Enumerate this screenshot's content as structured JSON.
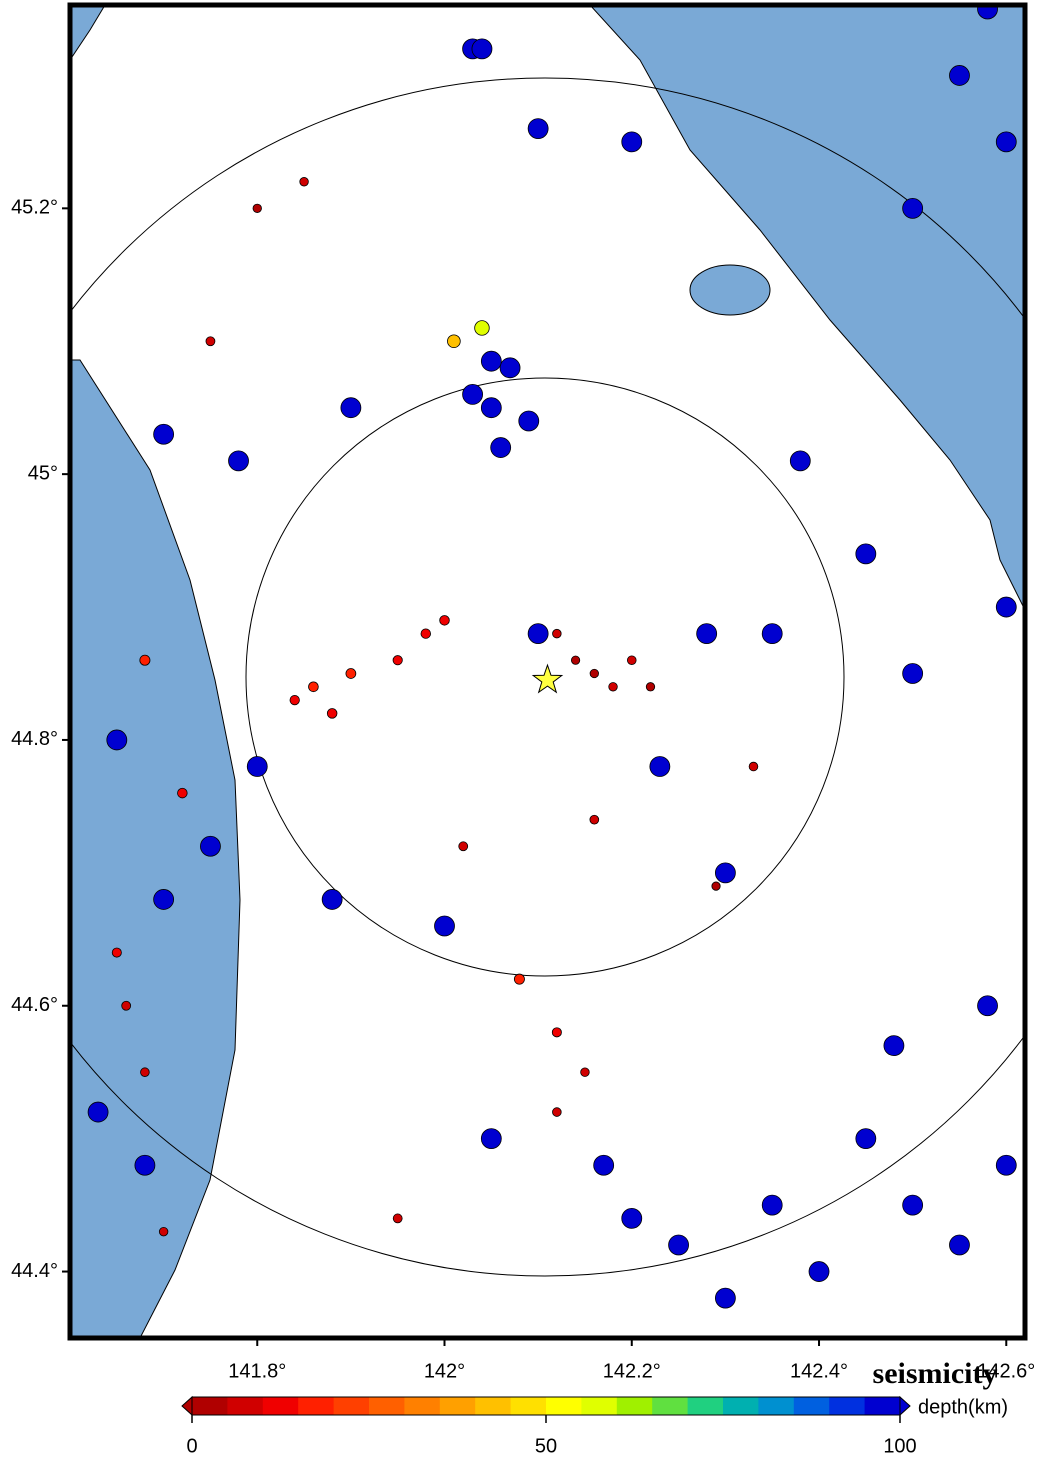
{
  "chart_data": {
    "type": "scatter",
    "title": "seismicity",
    "xlim": [
      141.6,
      142.62
    ],
    "ylim": [
      44.35,
      45.353
    ],
    "xticks": [
      {
        "value": 141.8,
        "label": "141.8°"
      },
      {
        "value": 142,
        "label": "142°"
      },
      {
        "value": 142.2,
        "label": "142.2°"
      },
      {
        "value": 142.4,
        "label": "142.4°"
      },
      {
        "value": 142.6,
        "label": "142.6°"
      }
    ],
    "yticks": [
      {
        "value": 44.4,
        "label": "44.4°"
      },
      {
        "value": 44.6,
        "label": "44.6°"
      },
      {
        "value": 44.8,
        "label": "44.8°"
      },
      {
        "value": 45,
        "label": "45°"
      },
      {
        "value": 45.2,
        "label": "45.2°"
      }
    ],
    "x": [
      141.86,
      141.88,
      141.9,
      141.84,
      141.98,
      142.0,
      141.95,
      142.14,
      142.16,
      142.18,
      142.2,
      142.12,
      142.22,
      142.05,
      142.07,
      142.09,
      142.03,
      142.06,
      142.05,
      142.04,
      142.01,
      142.38,
      142.45,
      142.5,
      142.35,
      142.28,
      142.45,
      142.5,
      142.55,
      142.4,
      142.35,
      142.3,
      142.6,
      142.25,
      142.58,
      142.48,
      141.66,
      141.68,
      141.7,
      141.65,
      141.72,
      141.68,
      141.65,
      141.7,
      141.63,
      141.68,
      141.75,
      141.8,
      141.88,
      142.0,
      142.1,
      142.23,
      142.3,
      141.85,
      141.8,
      141.75,
      141.9,
      141.78,
      141.7,
      142.55,
      142.6,
      142.5,
      142.2,
      142.1,
      142.03,
      142.04,
      142.12,
      142.12,
      142.15,
      142.17,
      142.2,
      142.05,
      141.95,
      142.08,
      142.29,
      142.33,
      142.02,
      142.16,
      142.6,
      142.58
    ],
    "y": [
      44.84,
      44.82,
      44.85,
      44.83,
      44.88,
      44.89,
      44.86,
      44.86,
      44.85,
      44.84,
      44.86,
      44.88,
      44.84,
      45.05,
      45.08,
      45.04,
      45.06,
      45.02,
      45.085,
      45.11,
      45.1,
      45.01,
      44.94,
      44.85,
      44.88,
      44.88,
      44.5,
      44.45,
      44.42,
      44.4,
      44.45,
      44.38,
      44.48,
      44.42,
      44.6,
      44.57,
      44.6,
      44.55,
      44.43,
      44.64,
      44.76,
      44.86,
      44.8,
      44.68,
      44.52,
      44.48,
      44.72,
      44.78,
      44.68,
      44.66,
      44.88,
      44.78,
      44.7,
      45.22,
      45.2,
      45.1,
      45.05,
      45.01,
      45.03,
      45.3,
      45.25,
      45.2,
      45.25,
      45.26,
      45.32,
      45.32,
      44.58,
      44.52,
      44.55,
      44.48,
      44.44,
      44.5,
      44.44,
      44.62,
      44.69,
      44.78,
      44.72,
      44.74,
      44.9,
      45.35
    ],
    "depth": [
      15,
      14,
      16,
      12,
      13,
      14,
      11,
      3,
      4,
      5,
      6,
      5,
      4,
      100,
      100,
      100,
      100,
      100,
      100,
      55,
      40,
      100,
      100,
      100,
      100,
      100,
      100,
      100,
      100,
      100,
      100,
      100,
      100,
      100,
      100,
      100,
      8,
      6,
      5,
      10,
      14,
      18,
      100,
      100,
      100,
      100,
      100,
      100,
      100,
      100,
      100,
      100,
      100,
      5,
      4,
      8,
      100,
      100,
      100,
      100,
      100,
      100,
      100,
      100,
      100,
      100,
      10,
      6,
      5,
      100,
      100,
      100,
      8,
      18,
      3,
      6,
      8,
      7,
      100,
      100
    ],
    "mainshock": {
      "x": 142.11,
      "y": 44.845
    },
    "colorbar": {
      "label": "depth(km)",
      "lim": [
        0,
        100
      ],
      "ticks": [
        0,
        50,
        100
      ]
    },
    "colormap": [
      "#b00000",
      "#d00000",
      "#f00000",
      "#ff2000",
      "#ff4000",
      "#ff6000",
      "#ff8000",
      "#ffa000",
      "#ffc000",
      "#ffe000",
      "#ffff00",
      "#e0ff00",
      "#a0f000",
      "#60e040",
      "#20d080",
      "#00b0b0",
      "#0090d0",
      "#0060e0",
      "#0030e0",
      "#0000d0"
    ]
  }
}
